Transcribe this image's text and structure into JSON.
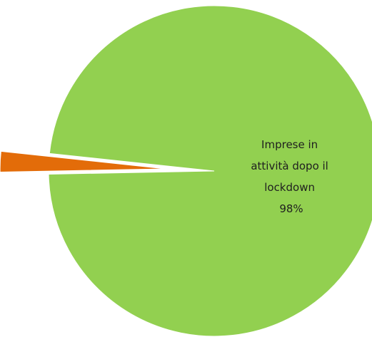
{
  "chart_data": {
    "type": "pie",
    "title": "",
    "slices": [
      {
        "label_lines": [
          "Imprese in",
          "attività dopo il",
          "lockdown",
          "98%"
        ],
        "value": 98,
        "color": "#92d050"
      },
      {
        "label_lines": [],
        "value": 2,
        "color": "#e36c09",
        "exploded": true
      }
    ]
  }
}
